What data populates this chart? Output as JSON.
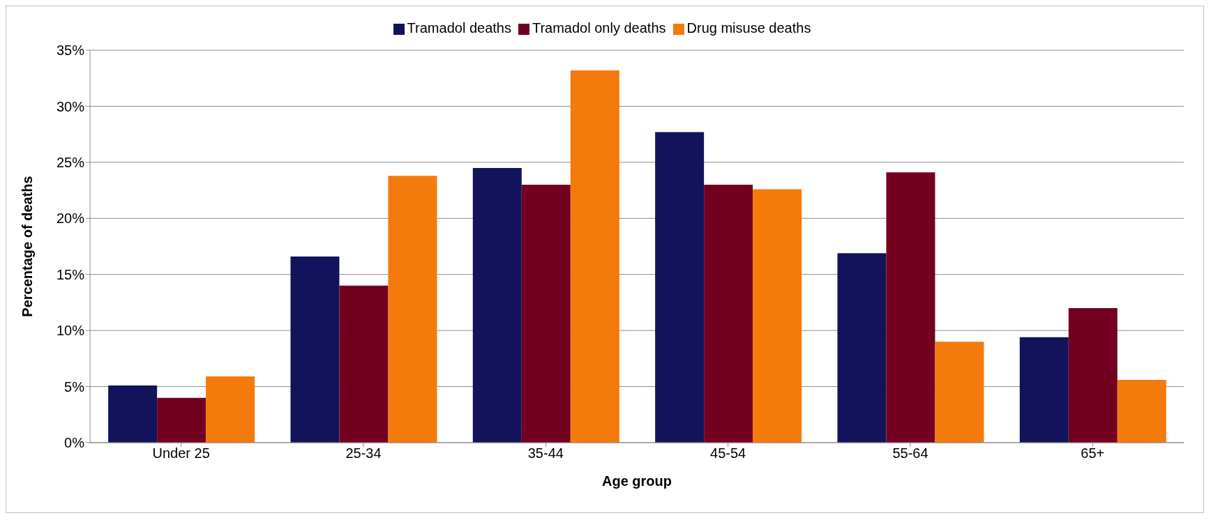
{
  "chart_data": {
    "type": "bar",
    "xlabel": "Age group",
    "ylabel": "Percentage of deaths",
    "categories": [
      "Under 25",
      "25-34",
      "35-44",
      "45-54",
      "55-64",
      "65+"
    ],
    "series": [
      {
        "name": "Tramadol deaths",
        "color": "#12135a",
        "values": [
          5.1,
          16.6,
          24.5,
          27.7,
          16.9,
          9.4
        ]
      },
      {
        "name": "Tramadol only deaths",
        "color": "#730021",
        "values": [
          4.0,
          14.0,
          23.0,
          23.0,
          24.1,
          12.0
        ]
      },
      {
        "name": "Drug misuse deaths",
        "color": "#f57a0c",
        "values": [
          5.9,
          23.8,
          33.2,
          22.6,
          9.0,
          5.6
        ]
      }
    ],
    "ylim": [
      0,
      35
    ],
    "yticks": [
      {
        "value": 0,
        "label": "0%"
      },
      {
        "value": 5,
        "label": "5%"
      },
      {
        "value": 10,
        "label": "10%"
      },
      {
        "value": 15,
        "label": "15%"
      },
      {
        "value": 20,
        "label": "20%"
      },
      {
        "value": 25,
        "label": "25%"
      },
      {
        "value": 30,
        "label": "30%"
      },
      {
        "value": 35,
        "label": "35%"
      }
    ],
    "grid": "y",
    "legend": "top"
  }
}
